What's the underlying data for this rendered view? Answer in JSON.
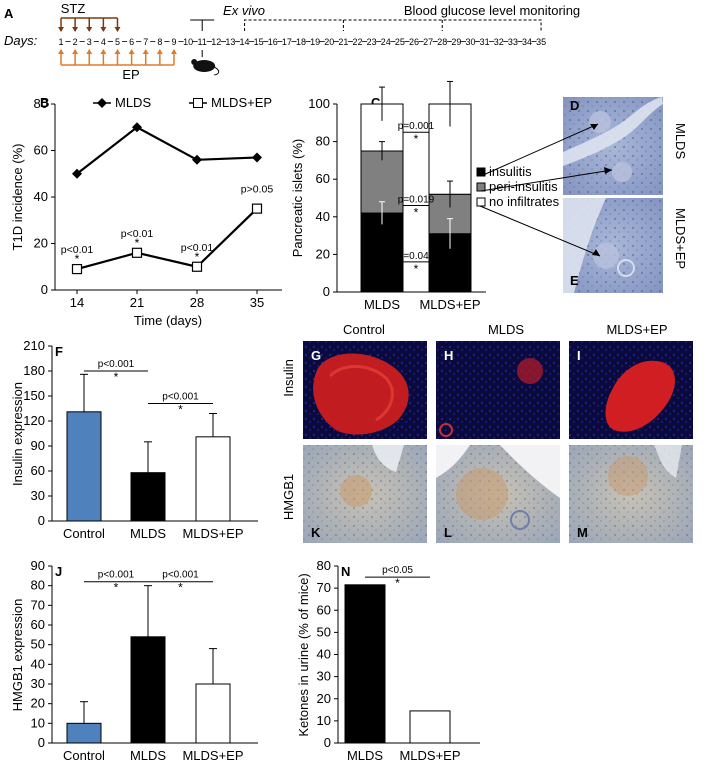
{
  "timeline": {
    "panel_letter": "A",
    "days_label": "Days:",
    "stz_label": "STZ",
    "ep_label": "EP",
    "exvivo_label": "Ex vivo",
    "monitoring_label": "Blood glucose level monitoring",
    "days": [
      "1",
      "2",
      "3",
      "4",
      "5",
      "6",
      "7",
      "8",
      "9",
      "10",
      "11",
      "12",
      "13",
      "14",
      "15",
      "16",
      "17",
      "18",
      "19",
      "20",
      "21",
      "22",
      "23",
      "24",
      "25",
      "26",
      "27",
      "28",
      "29",
      "30",
      "31",
      "32",
      "33",
      "34",
      "35"
    ],
    "stz_days": [
      1,
      2,
      3,
      4,
      5
    ],
    "ep_days": [
      1,
      2,
      3,
      4,
      5,
      6,
      7,
      8,
      9
    ],
    "exvivo_day": 11,
    "colors": {
      "stz": "#7a3a14",
      "ep": "#e07b28"
    }
  },
  "micrographs": {
    "panel_C_right": [
      {
        "letter": "D",
        "side_label": "MLDS"
      },
      {
        "letter": "E",
        "side_label": "MLDS+EP"
      }
    ],
    "row_labels": [
      "Insulin",
      "HMGB1"
    ],
    "col_labels": [
      "Control",
      "MLDS",
      "MLDS+EP"
    ],
    "insulin_letters": [
      "G",
      "H",
      "I"
    ],
    "hmgb1_letters": [
      "K",
      "L",
      "M"
    ]
  },
  "chart_data": [
    {
      "panel": "B",
      "type": "line",
      "xlabel": "Time (days)",
      "ylabel": "T1D incidence (%)",
      "x": [
        14,
        21,
        28,
        35
      ],
      "ylim": [
        0,
        80
      ],
      "yticks": [
        "0",
        "20",
        "40",
        "60",
        "80"
      ],
      "series": [
        {
          "name": "MLDS",
          "marker": "filled-diamond",
          "values": [
            50,
            70,
            56,
            57
          ]
        },
        {
          "name": "MLDS+EP",
          "marker": "open-square",
          "values": [
            9,
            16,
            10,
            35
          ]
        }
      ],
      "annotations": [
        {
          "x": 14,
          "text": "p<0.01",
          "star": "*"
        },
        {
          "x": 21,
          "text": "p<0.01",
          "star": "*"
        },
        {
          "x": 28,
          "text": "p<0.01",
          "star": "*"
        },
        {
          "x": 35,
          "text": "p>0.05",
          "star": ""
        }
      ]
    },
    {
      "panel": "C",
      "type": "bar",
      "stacked": true,
      "ylabel": "Pancreatic islets (%)",
      "categories": [
        "MLDS",
        "MLDS+EP"
      ],
      "ylim": [
        0,
        100
      ],
      "yticks": [
        "0",
        "20",
        "40",
        "60",
        "80",
        "100"
      ],
      "series": [
        {
          "name": "insulitis",
          "color": "#000000",
          "values": [
            42,
            31
          ],
          "err": [
            6,
            8
          ]
        },
        {
          "name": "peri-insulitis",
          "color": "#808080",
          "values": [
            33,
            21
          ],
          "err": [
            5,
            7
          ]
        },
        {
          "name": "no infiltrates",
          "color": "#ffffff",
          "values": [
            25,
            48
          ],
          "err": [
            9,
            12
          ]
        }
      ],
      "annotations": [
        {
          "text": "p=0.001",
          "star": "*",
          "y": 85
        },
        {
          "text": "p=0.019",
          "star": "*",
          "y": 46
        },
        {
          "text": "p=0.049",
          "star": "*",
          "y": 16
        }
      ]
    },
    {
      "panel": "F",
      "type": "bar",
      "ylabel": "Insulin expression",
      "categories": [
        "Control",
        "MLDS",
        "MLDS+EP"
      ],
      "values": [
        131,
        58,
        101
      ],
      "err": [
        45,
        37,
        28
      ],
      "colors": [
        "#4f81bd",
        "#000000",
        "#ffffff"
      ],
      "ylim": [
        0,
        210
      ],
      "yticks": [
        "0",
        "30",
        "60",
        "90",
        "120",
        "150",
        "180",
        "210"
      ],
      "annotations": [
        {
          "text": "p<0.001",
          "star": "*",
          "from": 0,
          "to": 1,
          "y": 180
        },
        {
          "text": "p<0.001",
          "star": "*",
          "from": 1,
          "to": 2,
          "y": 141
        }
      ]
    },
    {
      "panel": "J",
      "type": "bar",
      "ylabel": "HMGB1 expression",
      "categories": [
        "Control",
        "MLDS",
        "MLDS+EP"
      ],
      "values": [
        10,
        54,
        30
      ],
      "err": [
        11,
        26,
        18
      ],
      "colors": [
        "#4f81bd",
        "#000000",
        "#ffffff"
      ],
      "ylim": [
        0,
        90
      ],
      "yticks": [
        "0",
        "10",
        "20",
        "30",
        "40",
        "50",
        "60",
        "70",
        "80",
        "90"
      ],
      "annotations": [
        {
          "text": "p<0.001",
          "star": "*",
          "from": 0,
          "to": 1,
          "y": 82
        },
        {
          "text": "p<0.001",
          "star": "*",
          "from": 1,
          "to": 2,
          "y": 82
        }
      ]
    },
    {
      "panel": "N",
      "type": "bar",
      "ylabel": "Ketones in urine (% of mice)",
      "categories": [
        "MLDS",
        "MLDS+EP"
      ],
      "values": [
        71.5,
        14.5
      ],
      "colors": [
        "#000000",
        "#ffffff"
      ],
      "ylim": [
        0,
        80
      ],
      "yticks": [
        "0",
        "10",
        "20",
        "30",
        "40",
        "50",
        "60",
        "70",
        "80"
      ],
      "annotations": [
        {
          "text": "p<0.05",
          "star": "*",
          "from": 0,
          "to": 1,
          "y": 75
        }
      ]
    }
  ]
}
